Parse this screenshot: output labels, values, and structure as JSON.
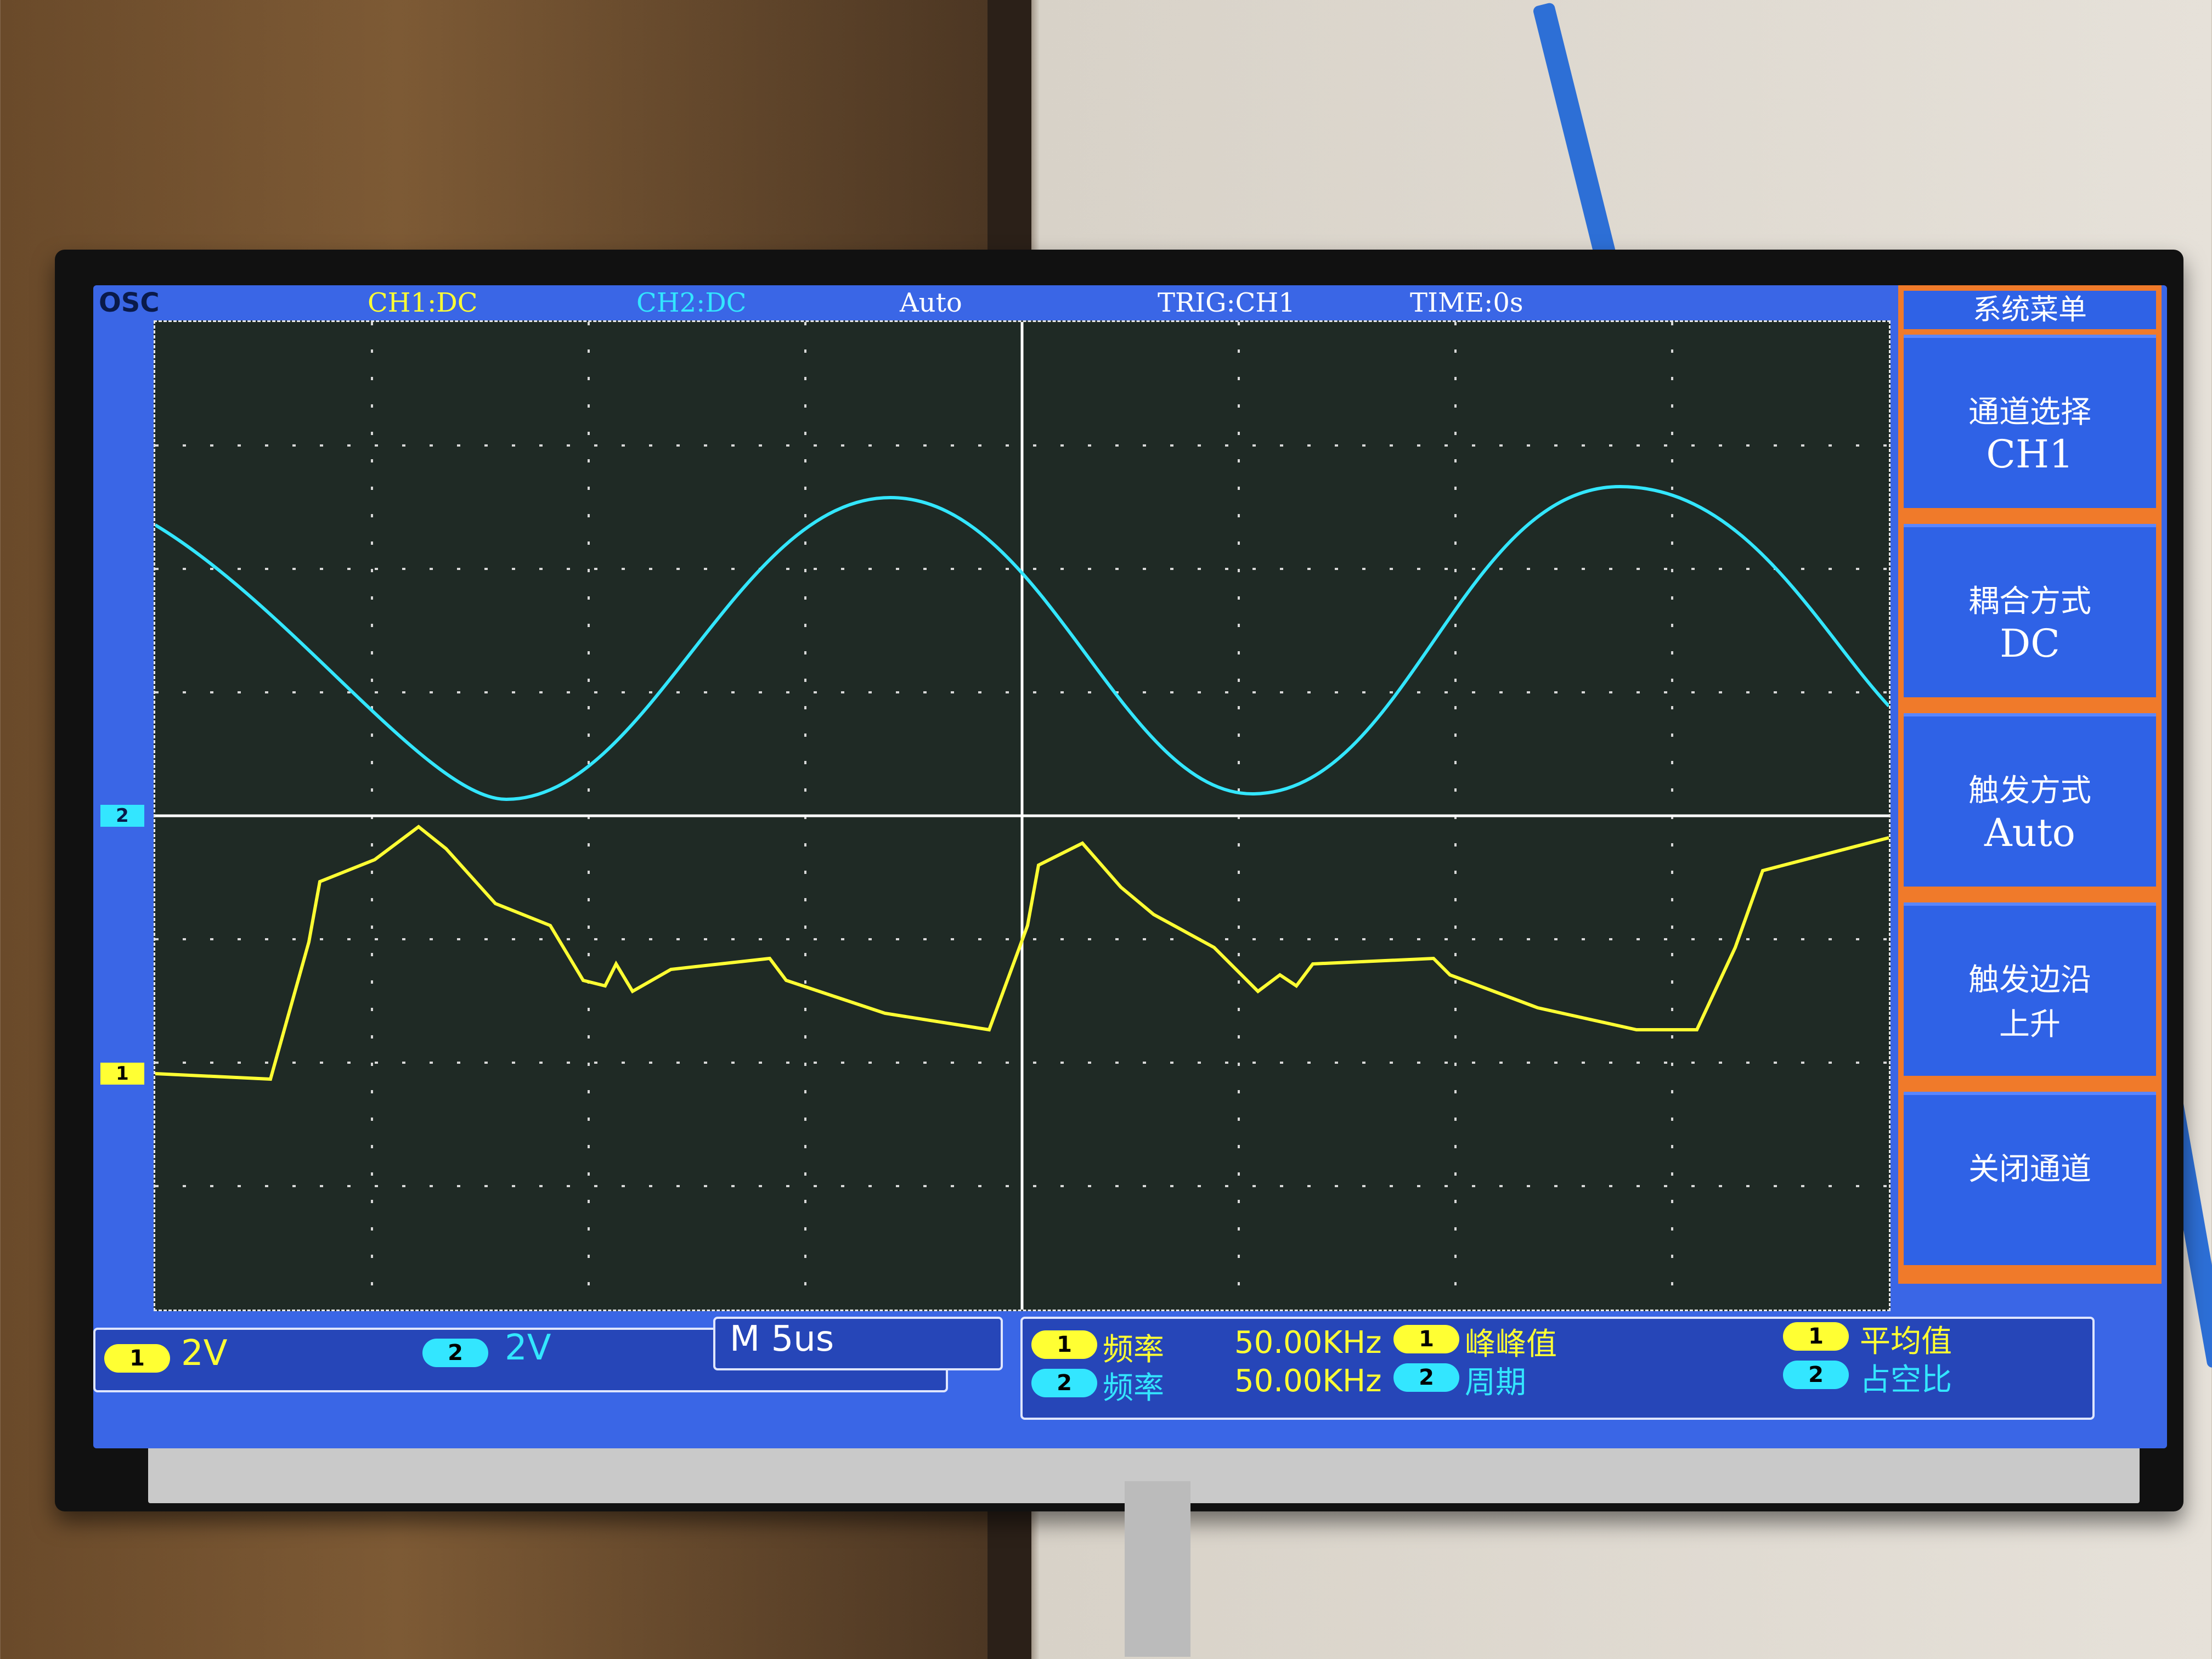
{
  "osc": {
    "logo": "OSC",
    "ch1_coupling": "CH1:DC",
    "ch2_coupling": "CH2:DC",
    "mode": "Auto",
    "trigger": "TRIG:CH1",
    "time": "TIME:0s"
  },
  "menu": {
    "title": "系统菜单",
    "items": [
      {
        "label": "通道选择",
        "value": "CH1"
      },
      {
        "label": "耦合方式",
        "value": "DC"
      },
      {
        "label": "触发方式",
        "value": "Auto"
      },
      {
        "label": "触发边沿",
        "value": "上升"
      },
      {
        "label": "关闭通道",
        "value": ""
      }
    ]
  },
  "bottom": {
    "ch1_scale": "2V",
    "ch2_scale": "2V",
    "timebase": "M 5us",
    "badge1": "1",
    "badge2": "2",
    "freq_label": "频率",
    "ch1_freq": "50.00KHz",
    "ch2_freq": "50.00KHz",
    "pkpk_label": "峰峰值",
    "period_label": "周期",
    "avg_label": "平均值",
    "duty_label": "占空比"
  },
  "markers": {
    "ch1": "1",
    "ch2": "2"
  },
  "colors": {
    "ch1": "#ffff33",
    "ch2": "#33e6ff",
    "screen": "#3a66e6",
    "menu_accent": "#f07a2a"
  }
}
